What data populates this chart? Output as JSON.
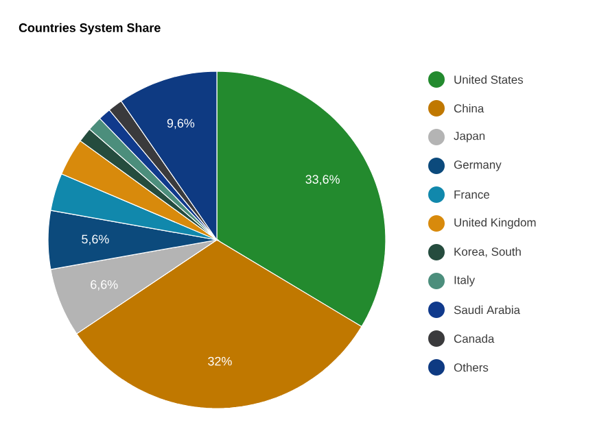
{
  "chart_data": {
    "type": "pie",
    "title": "Countries System Share",
    "categories": [
      "United States",
      "China",
      "Japan",
      "Germany",
      "France",
      "United Kingdom",
      "Korea, South",
      "Italy",
      "Saudi Arabia",
      "Canada",
      "Others"
    ],
    "values": [
      33.6,
      32,
      6.6,
      5.6,
      3.6,
      3.6,
      1.4,
      1.4,
      1.2,
      1.4,
      9.6
    ],
    "value_labels": [
      "33,6%",
      "32%",
      "6,6%",
      "5,6%",
      null,
      null,
      null,
      null,
      null,
      null,
      "9,6%"
    ],
    "colors": [
      "#238a2e",
      "#c07800",
      "#b4b4b4",
      "#0c4a7c",
      "#1188ac",
      "#d88a0c",
      "#254c3e",
      "#4c8e7c",
      "#103a8c",
      "#3a3a3c",
      "#0e3a82"
    ],
    "legend": "right"
  }
}
